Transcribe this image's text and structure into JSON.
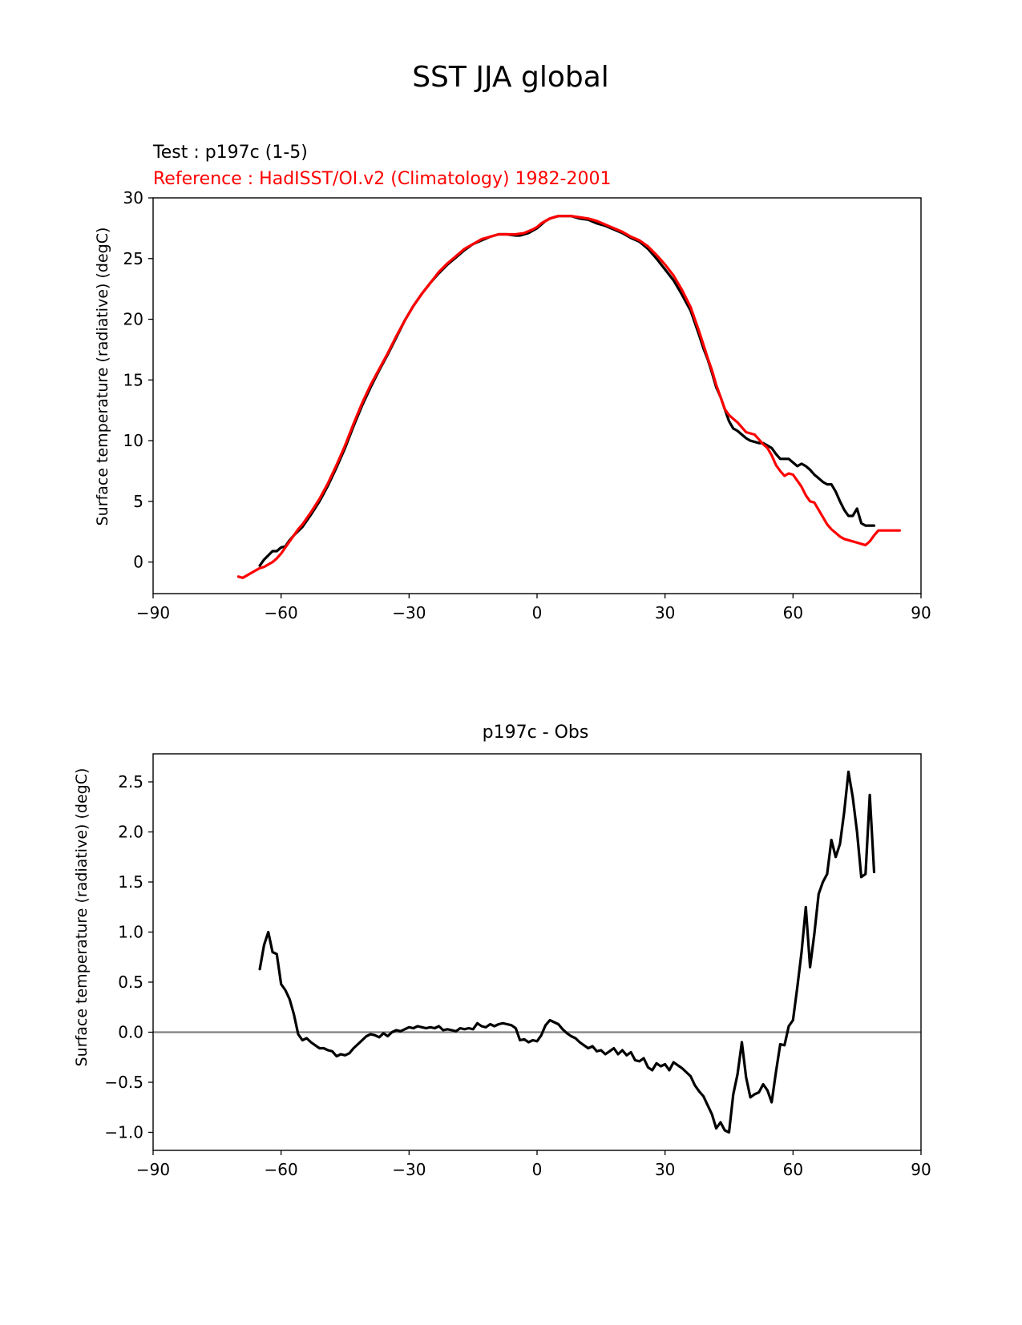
{
  "figure": {
    "title": "SST JJA global"
  },
  "colors": {
    "test": "#000000",
    "reference": "#ff0000",
    "zero_line": "#808080"
  },
  "chart_data": [
    {
      "type": "line",
      "test_label": "Test : p197c (1-5)",
      "reference_label": "Reference : HadISST/OI.v2 (Climatology) 1982-2001",
      "xlabel": "",
      "ylabel": "Surface temperature (radiative) (degC)",
      "xlim": [
        -90,
        90
      ],
      "ylim": [
        -2.6,
        30
      ],
      "xticks": [
        -90,
        -60,
        -30,
        0,
        30,
        60,
        90
      ],
      "xtick_labels": [
        "−90",
        "−60",
        "−30",
        "0",
        "30",
        "60",
        "90"
      ],
      "yticks": [
        0,
        5,
        10,
        15,
        20,
        25,
        30
      ],
      "ytick_labels": [
        "0",
        "5",
        "10",
        "15",
        "20",
        "25",
        "30"
      ],
      "grid": false,
      "series": [
        {
          "role": "test",
          "color": "#000000",
          "x": [
            -65,
            -64,
            -62,
            -61,
            -60,
            -59,
            -58,
            -57,
            -55,
            -53,
            -51,
            -49,
            -47,
            -45,
            -43,
            -41,
            -39,
            -37,
            -35,
            -33,
            -31,
            -29,
            -27,
            -25,
            -23,
            -21,
            -19,
            -17,
            -15,
            -13,
            -11,
            -9,
            -7,
            -5,
            -4,
            -3,
            -2,
            -1,
            0,
            1,
            2,
            3,
            4,
            5,
            6,
            7,
            8,
            10,
            12,
            14,
            16,
            18,
            20,
            22,
            24,
            26,
            28,
            30,
            32,
            34,
            36,
            38,
            39,
            40,
            41,
            42,
            43,
            44,
            45,
            46,
            47,
            48,
            49,
            50,
            51,
            52,
            53,
            54,
            55,
            56,
            57,
            58,
            59,
            60,
            61,
            62,
            63,
            64,
            65,
            66,
            67,
            68,
            69,
            70,
            71,
            72,
            73,
            74,
            75,
            76,
            77,
            78,
            79
          ],
          "values": [
            -0.3,
            0.2,
            0.9,
            0.9,
            1.2,
            1.3,
            1.8,
            2.2,
            2.9,
            3.9,
            5.0,
            6.3,
            7.8,
            9.4,
            11.2,
            12.9,
            14.4,
            15.8,
            17.1,
            18.5,
            19.9,
            21.1,
            22.1,
            23.0,
            23.8,
            24.5,
            25.1,
            25.7,
            26.2,
            26.5,
            26.8,
            27.0,
            27.0,
            26.9,
            26.9,
            27.0,
            27.1,
            27.3,
            27.5,
            27.8,
            28.1,
            28.3,
            28.4,
            28.5,
            28.5,
            28.5,
            28.5,
            28.3,
            28.2,
            27.9,
            27.7,
            27.4,
            27.1,
            26.7,
            26.4,
            25.8,
            25.0,
            24.1,
            23.2,
            22.0,
            20.7,
            18.7,
            17.6,
            16.7,
            15.6,
            14.4,
            13.6,
            12.6,
            11.6,
            11.0,
            10.8,
            10.5,
            10.2,
            10.0,
            9.9,
            9.8,
            9.8,
            9.6,
            9.4,
            8.9,
            8.5,
            8.5,
            8.5,
            8.2,
            7.9,
            8.1,
            7.9,
            7.6,
            7.2,
            6.9,
            6.6,
            6.4,
            6.4,
            5.8,
            5.0,
            4.3,
            3.8,
            3.8,
            4.4,
            3.2,
            3.0,
            3.0,
            3.0
          ]
        },
        {
          "role": "reference",
          "color": "#ff0000",
          "x": [
            -70,
            -69,
            -68,
            -67,
            -66,
            -65,
            -64,
            -63,
            -62,
            -61,
            -60,
            -59,
            -58,
            -57,
            -56,
            -55,
            -53,
            -51,
            -49,
            -47,
            -45,
            -43,
            -41,
            -39,
            -37,
            -35,
            -33,
            -31,
            -29,
            -27,
            -25,
            -23,
            -21,
            -19,
            -17,
            -15,
            -13,
            -11,
            -9,
            -7,
            -5,
            -3,
            -1,
            0,
            1,
            2,
            3,
            4,
            5,
            6,
            7,
            8,
            10,
            12,
            14,
            16,
            18,
            20,
            22,
            24,
            26,
            28,
            30,
            32,
            34,
            36,
            38,
            39,
            40,
            41,
            42,
            43,
            44,
            45,
            46,
            47,
            48,
            49,
            50,
            51,
            52,
            53,
            54,
            55,
            56,
            57,
            58,
            59,
            60,
            61,
            62,
            63,
            64,
            65,
            66,
            67,
            68,
            69,
            70,
            71,
            72,
            73,
            74,
            75,
            76,
            77,
            78,
            79,
            80,
            81,
            82,
            83,
            84,
            85
          ],
          "values": [
            -1.2,
            -1.3,
            -1.1,
            -0.9,
            -0.7,
            -0.5,
            -0.4,
            -0.2,
            0.0,
            0.3,
            0.7,
            1.2,
            1.7,
            2.2,
            2.7,
            3.1,
            4.1,
            5.2,
            6.5,
            8.0,
            9.6,
            11.4,
            13.1,
            14.6,
            15.9,
            17.2,
            18.6,
            19.9,
            21.1,
            22.1,
            23.0,
            23.9,
            24.6,
            25.2,
            25.8,
            26.2,
            26.6,
            26.8,
            27.0,
            27.0,
            27.0,
            27.1,
            27.4,
            27.6,
            27.9,
            28.1,
            28.3,
            28.4,
            28.5,
            28.5,
            28.5,
            28.5,
            28.4,
            28.3,
            28.1,
            27.8,
            27.5,
            27.2,
            26.8,
            26.5,
            26.0,
            25.3,
            24.5,
            23.6,
            22.4,
            21.0,
            19.0,
            17.9,
            16.8,
            15.8,
            14.6,
            13.6,
            12.6,
            12.1,
            11.8,
            11.5,
            11.1,
            10.7,
            10.6,
            10.5,
            10.1,
            9.7,
            9.4,
            8.8,
            8.0,
            7.5,
            7.1,
            7.3,
            7.2,
            6.7,
            6.2,
            5.5,
            5.0,
            4.9,
            4.3,
            3.7,
            3.1,
            2.7,
            2.4,
            2.1,
            1.9,
            1.8,
            1.7,
            1.6,
            1.5,
            1.4,
            1.7,
            2.2,
            2.6,
            2.6,
            2.6,
            2.6,
            2.6,
            2.6
          ]
        }
      ]
    },
    {
      "type": "line",
      "title": "p197c - Obs",
      "xlabel": "",
      "ylabel": "Surface temperature (radiative) (degC)",
      "xlim": [
        -90,
        90
      ],
      "ylim": [
        -1.18,
        2.78
      ],
      "xticks": [
        -90,
        -60,
        -30,
        0,
        30,
        60,
        90
      ],
      "xtick_labels": [
        "−90",
        "−60",
        "−30",
        "0",
        "30",
        "60",
        "90"
      ],
      "yticks": [
        -1.0,
        -0.5,
        0.0,
        0.5,
        1.0,
        1.5,
        2.0,
        2.5
      ],
      "ytick_labels": [
        "−1.0",
        "−0.5",
        "0.0",
        "0.5",
        "1.0",
        "1.5",
        "2.0",
        "2.5"
      ],
      "zero_line": 0,
      "grid": false,
      "series": [
        {
          "role": "difference",
          "color": "#000000",
          "x": [
            -65,
            -64,
            -63,
            -62,
            -61,
            -60,
            -59,
            -58,
            -57,
            -56,
            -55,
            -54,
            -53,
            -52,
            -51,
            -50,
            -49,
            -48,
            -47,
            -46,
            -45,
            -44,
            -43,
            -42,
            -41,
            -40,
            -39,
            -38,
            -37,
            -36,
            -35,
            -34,
            -33,
            -32,
            -31,
            -30,
            -29,
            -28,
            -27,
            -26,
            -25,
            -24,
            -23,
            -22,
            -21,
            -20,
            -19,
            -18,
            -17,
            -16,
            -15,
            -14,
            -13,
            -12,
            -11,
            -10,
            -9,
            -8,
            -7,
            -6,
            -5,
            -4,
            -3,
            -2,
            -1,
            0,
            1,
            2,
            3,
            4,
            5,
            6,
            7,
            8,
            9,
            10,
            11,
            12,
            13,
            14,
            15,
            16,
            17,
            18,
            19,
            20,
            21,
            22,
            23,
            24,
            25,
            26,
            27,
            28,
            29,
            30,
            31,
            32,
            33,
            34,
            35,
            36,
            37,
            38,
            39,
            40,
            41,
            42,
            43,
            44,
            45,
            46,
            47,
            48,
            49,
            50,
            51,
            52,
            53,
            54,
            55,
            56,
            57,
            58,
            59,
            60,
            61,
            62,
            63,
            64,
            65,
            66,
            67,
            68,
            69,
            70,
            71,
            72,
            73,
            74,
            75,
            76,
            77,
            78,
            79
          ],
          "values": [
            0.63,
            0.87,
            1.0,
            0.8,
            0.78,
            0.48,
            0.42,
            0.33,
            0.18,
            -0.02,
            -0.08,
            -0.06,
            -0.1,
            -0.13,
            -0.16,
            -0.16,
            -0.18,
            -0.19,
            -0.24,
            -0.22,
            -0.23,
            -0.21,
            -0.16,
            -0.12,
            -0.08,
            -0.04,
            -0.02,
            -0.03,
            -0.05,
            -0.01,
            -0.04,
            0.0,
            0.02,
            0.01,
            0.03,
            0.05,
            0.04,
            0.06,
            0.05,
            0.04,
            0.05,
            0.04,
            0.06,
            0.02,
            0.03,
            0.02,
            0.01,
            0.04,
            0.03,
            0.04,
            0.03,
            0.09,
            0.06,
            0.05,
            0.08,
            0.06,
            0.08,
            0.09,
            0.08,
            0.07,
            0.04,
            -0.08,
            -0.07,
            -0.1,
            -0.08,
            -0.09,
            -0.03,
            0.07,
            0.12,
            0.1,
            0.08,
            0.03,
            -0.01,
            -0.04,
            -0.06,
            -0.1,
            -0.13,
            -0.16,
            -0.14,
            -0.19,
            -0.18,
            -0.22,
            -0.19,
            -0.16,
            -0.22,
            -0.18,
            -0.23,
            -0.2,
            -0.28,
            -0.29,
            -0.26,
            -0.35,
            -0.38,
            -0.31,
            -0.34,
            -0.32,
            -0.38,
            -0.3,
            -0.33,
            -0.36,
            -0.4,
            -0.44,
            -0.53,
            -0.59,
            -0.64,
            -0.73,
            -0.82,
            -0.96,
            -0.9,
            -0.98,
            -1.0,
            -0.62,
            -0.42,
            -0.1,
            -0.45,
            -0.65,
            -0.62,
            -0.6,
            -0.52,
            -0.58,
            -0.7,
            -0.4,
            -0.12,
            -0.13,
            0.06,
            0.12,
            0.45,
            0.8,
            1.25,
            0.65,
            0.98,
            1.38,
            1.5,
            1.58,
            1.92,
            1.75,
            1.88,
            2.2,
            2.6,
            2.35,
            2.0,
            1.55,
            1.58,
            2.37,
            1.6
          ]
        }
      ]
    }
  ]
}
